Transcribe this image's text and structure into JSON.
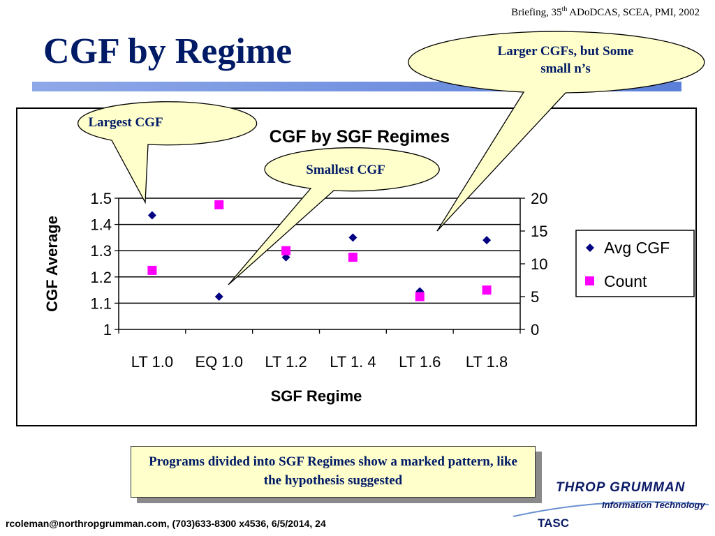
{
  "header": {
    "briefing_prefix": "Briefing, 35",
    "briefing_sup": "th",
    "briefing_suffix": " ADoDCAS, SCEA, PMI, 2002",
    "title": "CGF by Regime"
  },
  "callouts": {
    "largest": "Largest CGF",
    "smallest": "Smallest CGF",
    "larger_line1": "Larger CGFs, but Some",
    "larger_line2": "small n’s"
  },
  "note": "Programs divided into SGF Regimes show a marked pattern, like the hypothesis suggested",
  "logo": {
    "main": "THROP GRUMMAN",
    "sub": "Information Technology",
    "tasc": "TASC"
  },
  "footer": "rcoleman@northropgrumman.com, (703)633-8300 x4536, 6/5/2014, 24",
  "colors": {
    "title": "#001a66",
    "callout_fill": "#ffffcc",
    "series_avg": "#000080",
    "series_count": "#ff00ff"
  },
  "chart_data": {
    "type": "scatter",
    "title": "CGF by SGF Regimes",
    "xlabel": "SGF Regime",
    "ylabel": "CGF Average",
    "categories": [
      "LT 1.0",
      "EQ 1.0",
      "LT 1.2",
      "LT 1. 4",
      "LT 1.6",
      "LT 1.8"
    ],
    "ylim": [
      1,
      1.5
    ],
    "yticks": [
      "1",
      "1.1",
      "1.2",
      "1.3",
      "1.4",
      "1.5"
    ],
    "y2lim": [
      0,
      20
    ],
    "y2ticks": [
      "0",
      "5",
      "10",
      "15",
      "20"
    ],
    "grid": true,
    "legend": "right",
    "series": [
      {
        "name": "Avg CGF",
        "axis": "left",
        "marker": "diamond",
        "color": "#000080",
        "values": [
          1.435,
          1.125,
          1.275,
          1.35,
          1.145,
          1.34
        ]
      },
      {
        "name": "Count",
        "axis": "right",
        "marker": "square",
        "color": "#ff00ff",
        "values": [
          9,
          19,
          12,
          11,
          5,
          6
        ]
      }
    ]
  }
}
